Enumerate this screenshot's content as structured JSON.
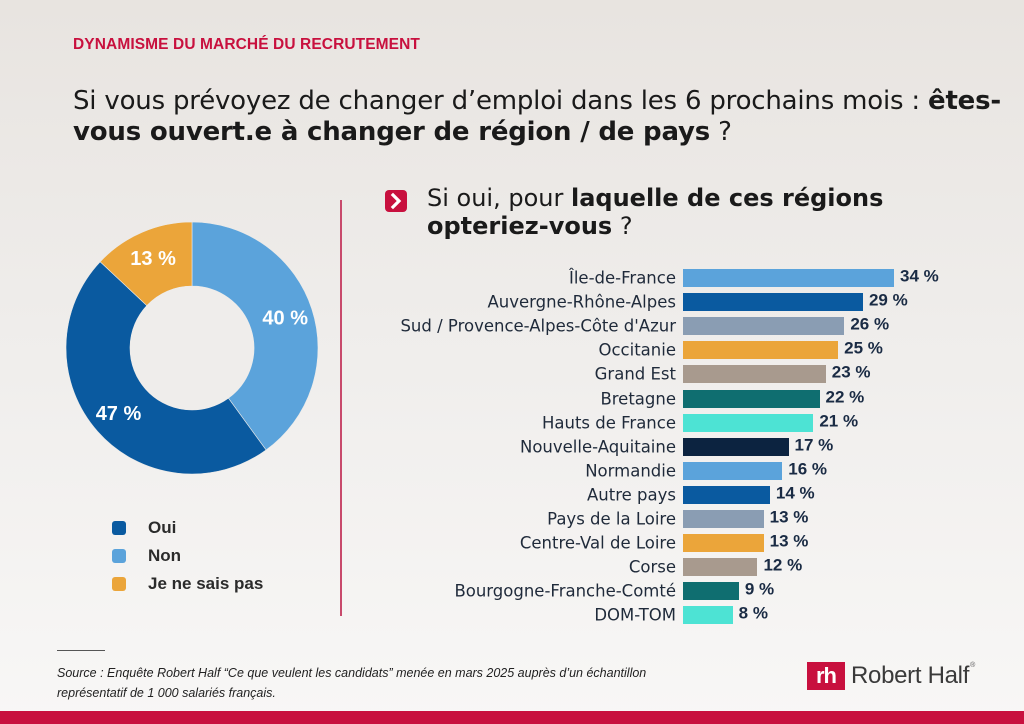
{
  "header": {
    "kicker": "DYNAMISME DU MARCHÉ DU RECRUTEMENT",
    "title_regular_1": "Si vous prévoyez de changer d’emploi dans les 6 prochains mois : ",
    "title_bold": "êtes-vous ouvert.e à changer de région / de pays",
    "title_regular_2": " ?"
  },
  "subheader": {
    "icon": "chevron-right-icon",
    "text_regular_1": "Si oui, pour ",
    "text_bold_1": "laquelle de ces régions opteriez-vous",
    "text_regular_2": " ?"
  },
  "colors": {
    "accent": "#c8103e",
    "divider": "#c84a6c"
  },
  "chart_data": [
    {
      "type": "pie",
      "variant": "donut",
      "title": "Si vous prévoyez de changer d’emploi dans les 6 prochains mois : êtes-vous ouvert.e à changer de région / de pays ?",
      "categories": [
        "Oui",
        "Non",
        "Je ne sais pas"
      ],
      "values": [
        47,
        40,
        13
      ],
      "value_labels": [
        "47 %",
        "40 %",
        "13 %"
      ],
      "colors": [
        "#0a5aa0",
        "#5ba3db",
        "#eba53a"
      ],
      "legend": "bottom-left",
      "unit": "%"
    },
    {
      "type": "bar",
      "orientation": "horizontal",
      "title": "Si oui, pour laquelle de ces régions opteriez-vous ?",
      "categories": [
        "Île-de-France",
        "Auvergne-Rhône-Alpes",
        "Sud / Provence-Alpes-Côte d'Azur",
        "Occitanie",
        "Grand Est",
        "Bretagne",
        "Hauts de France",
        "Nouvelle-Aquitaine",
        "Normandie",
        "Autre pays",
        "Pays de la Loire",
        "Centre-Val de Loire",
        "Corse",
        "Bourgogne-Franche-Comté",
        "DOM-TOM"
      ],
      "values": [
        34,
        29,
        26,
        25,
        23,
        22,
        21,
        17,
        16,
        14,
        13,
        13,
        12,
        9,
        8
      ],
      "value_labels": [
        "34 %",
        "29 %",
        "26 %",
        "25 %",
        "23 %",
        "22 %",
        "21 %",
        "17 %",
        "16 %",
        "14 %",
        "13 %",
        "13 %",
        "12 %",
        "9 %",
        "8 %"
      ],
      "colors": [
        "#5ba3db",
        "#0a5aa0",
        "#8a9db3",
        "#eba53a",
        "#a89a8e",
        "#0f6e70",
        "#4de3d4",
        "#0c2340",
        "#5ba3db",
        "#0a5aa0",
        "#8a9db3",
        "#eba53a",
        "#a89a8e",
        "#0f6e70",
        "#4de3d4"
      ],
      "xlabel": "",
      "ylabel": "",
      "xlim": [
        0,
        34
      ],
      "grid": false,
      "unit": "%"
    }
  ],
  "footer": {
    "source": "Source : Enquête Robert Half “Ce que veulent les candidats” menée en mars 2025 auprès d’un échantillon représentatif de 1 000 salariés français.",
    "logo_mark": "rh",
    "logo_text": "Robert Half",
    "logo_reg": "®"
  }
}
